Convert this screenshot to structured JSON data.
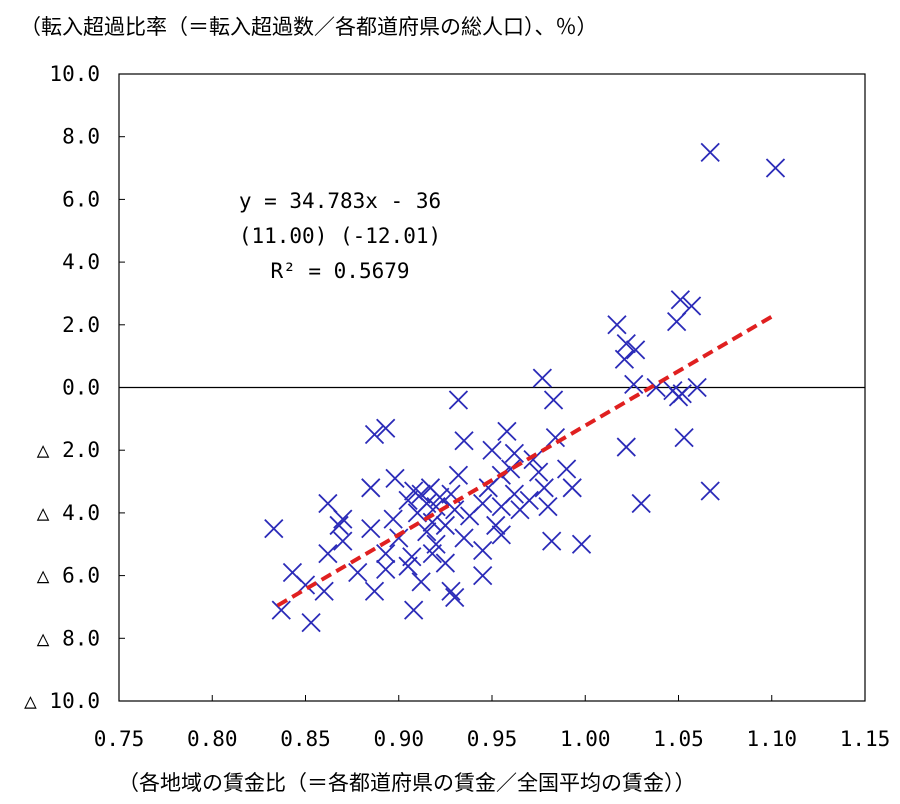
{
  "chart_data": {
    "type": "scatter",
    "title": "（転入超過比率（＝転入超過数／各都道府県の総人口）、％）",
    "xlabel": "（各地域の賃金比（＝各都道府県の賃金／全国平均の賃金））",
    "ylabel": "",
    "xlim": [
      0.75,
      1.15
    ],
    "ylim": [
      -10,
      10
    ],
    "xticks": [
      0.75,
      0.8,
      0.85,
      0.9,
      0.95,
      1.0,
      1.05,
      1.1,
      1.15
    ],
    "yticks": [
      10,
      8,
      6,
      4,
      2,
      0,
      -2,
      -4,
      -6,
      -8,
      -10
    ],
    "xtick_labels": [
      "0.75",
      "0.80",
      "0.85",
      "0.90",
      "0.95",
      "1.00",
      "1.05",
      "1.10",
      "1.15"
    ],
    "ytick_labels": [
      "10.0",
      "8.0",
      "6.0",
      "4.0",
      "2.0",
      "0.0",
      "△ 2.0",
      "△ 4.0",
      "△ 6.0",
      "△ 8.0",
      "△ 10.0"
    ],
    "grid": false,
    "marker": "x",
    "marker_color": "#2b2bb8",
    "trend_color": "#e02020",
    "trendline": {
      "slope": 34.783,
      "intercept": -36,
      "x_start": 0.835,
      "x_end": 1.1
    },
    "annotation": [
      "y = 34.783x - 36",
      "(11.00)  (-12.01)",
      "R² = 0.5679"
    ],
    "points": [
      [
        1.067,
        7.5
      ],
      [
        1.102,
        7.0
      ],
      [
        1.051,
        2.8
      ],
      [
        1.057,
        2.6
      ],
      [
        1.049,
        2.1
      ],
      [
        1.017,
        2.0
      ],
      [
        1.022,
        1.4
      ],
      [
        1.027,
        1.2
      ],
      [
        1.021,
        0.9
      ],
      [
        0.977,
        0.3
      ],
      [
        1.026,
        0.1
      ],
      [
        1.038,
        0.0
      ],
      [
        1.047,
        -0.1
      ],
      [
        1.052,
        -0.2
      ],
      [
        1.06,
        0.0
      ],
      [
        1.05,
        -0.3
      ],
      [
        0.932,
        -0.4
      ],
      [
        0.983,
        -0.4
      ],
      [
        0.887,
        -1.5
      ],
      [
        0.893,
        -1.3
      ],
      [
        0.935,
        -1.7
      ],
      [
        0.958,
        -1.4
      ],
      [
        0.984,
        -1.6
      ],
      [
        1.053,
        -1.6
      ],
      [
        0.95,
        -2.0
      ],
      [
        0.962,
        -2.1
      ],
      [
        0.972,
        -2.3
      ],
      [
        1.022,
        -1.9
      ],
      [
        0.932,
        -2.8
      ],
      [
        0.96,
        -2.6
      ],
      [
        0.975,
        -2.7
      ],
      [
        0.99,
        -2.6
      ],
      [
        0.898,
        -2.9
      ],
      [
        0.955,
        -2.8
      ],
      [
        0.885,
        -3.2
      ],
      [
        0.908,
        -3.3
      ],
      [
        0.912,
        -3.4
      ],
      [
        0.917,
        -3.2
      ],
      [
        0.922,
        -3.5
      ],
      [
        0.928,
        -3.4
      ],
      [
        0.948,
        -3.2
      ],
      [
        0.962,
        -3.4
      ],
      [
        0.97,
        -3.6
      ],
      [
        0.978,
        -3.2
      ],
      [
        0.993,
        -3.2
      ],
      [
        1.067,
        -3.3
      ],
      [
        0.862,
        -3.7
      ],
      [
        0.905,
        -3.6
      ],
      [
        0.915,
        -3.7
      ],
      [
        0.92,
        -3.8
      ],
      [
        0.93,
        -3.9
      ],
      [
        0.945,
        -3.7
      ],
      [
        0.955,
        -3.8
      ],
      [
        0.965,
        -3.9
      ],
      [
        0.98,
        -3.8
      ],
      [
        1.03,
        -3.7
      ],
      [
        0.87,
        -4.2
      ],
      [
        0.897,
        -4.2
      ],
      [
        0.91,
        -4.0
      ],
      [
        0.918,
        -4.3
      ],
      [
        0.938,
        -4.1
      ],
      [
        0.952,
        -4.4
      ],
      [
        0.868,
        -4.4
      ],
      [
        0.885,
        -4.5
      ],
      [
        0.915,
        -4.6
      ],
      [
        0.925,
        -4.4
      ],
      [
        0.833,
        -4.5
      ],
      [
        0.87,
        -4.9
      ],
      [
        0.9,
        -4.8
      ],
      [
        0.92,
        -5.0
      ],
      [
        0.935,
        -4.8
      ],
      [
        0.955,
        -4.7
      ],
      [
        0.982,
        -4.9
      ],
      [
        0.998,
        -5.0
      ],
      [
        0.862,
        -5.3
      ],
      [
        0.893,
        -5.3
      ],
      [
        0.907,
        -5.4
      ],
      [
        0.945,
        -5.2
      ],
      [
        0.918,
        -5.3
      ],
      [
        0.843,
        -5.9
      ],
      [
        0.878,
        -5.9
      ],
      [
        0.893,
        -5.8
      ],
      [
        0.905,
        -5.7
      ],
      [
        0.925,
        -5.6
      ],
      [
        0.945,
        -6.0
      ],
      [
        0.85,
        -6.3
      ],
      [
        0.86,
        -6.5
      ],
      [
        0.887,
        -6.5
      ],
      [
        0.912,
        -6.2
      ],
      [
        0.928,
        -6.5
      ],
      [
        0.93,
        -6.7
      ],
      [
        0.837,
        -7.1
      ],
      [
        0.853,
        -7.5
      ],
      [
        0.908,
        -7.1
      ]
    ]
  }
}
